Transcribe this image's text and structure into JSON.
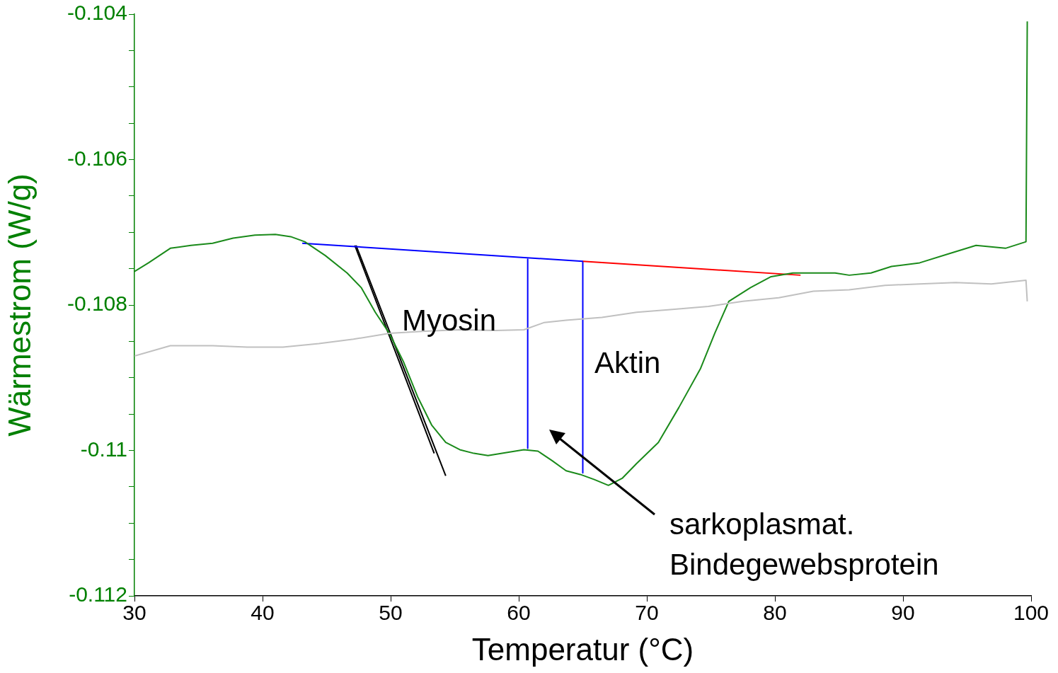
{
  "chart_data": {
    "type": "line",
    "xlabel": "Temperatur (°C)",
    "ylabel": "Wärmestrom (W/g)",
    "xlim": [
      30,
      100
    ],
    "xticks": [
      30,
      40,
      50,
      60,
      70,
      80,
      90,
      100
    ],
    "ylim": [
      -0.112,
      -0.104
    ],
    "yticks": [
      -0.112,
      {
        "value": -0.1115,
        "label": null
      },
      {
        "value": -0.111,
        "label": null
      },
      {
        "value": -0.1105,
        "label": null
      },
      -0.11,
      {
        "value": -0.1095,
        "label": null
      },
      {
        "value": -0.109,
        "label": null
      },
      {
        "value": -0.1085,
        "label": null
      },
      -0.108,
      {
        "value": -0.1075,
        "label": null
      },
      {
        "value": -0.107,
        "label": null
      },
      {
        "value": -0.1065,
        "label": null
      },
      -0.106,
      {
        "value": -0.1055,
        "label": null
      },
      {
        "value": -0.105,
        "label": null
      },
      {
        "value": -0.1045,
        "label": null
      },
      -0.104
    ],
    "grid": false,
    "legend": false,
    "marker": "none",
    "line_style": "solid",
    "series": [
      {
        "color": "#c0c0c0",
        "x": [
          30,
          32.8,
          36.1,
          38.8,
          41.6,
          44.4,
          47.1,
          49.9,
          52.7,
          55.4,
          58.2,
          60.4,
          62.0,
          63.7,
          66.5,
          69.2,
          72.0,
          74.8,
          77.5,
          80.3,
          83.0,
          85.8,
          88.6,
          91.3,
          94.1,
          96.9,
          99.6,
          99.7
        ],
        "values": [
          -0.1087,
          -0.10856,
          -0.10856,
          -0.10858,
          -0.10858,
          -0.10853,
          -0.10847,
          -0.10839,
          -0.10836,
          -0.10834,
          -0.10835,
          -0.10834,
          -0.10824,
          -0.10821,
          -0.10817,
          -0.1081,
          -0.10806,
          -0.10802,
          -0.10795,
          -0.1079,
          -0.10781,
          -0.10779,
          -0.10773,
          -0.10771,
          -0.10769,
          -0.10771,
          -0.10766,
          -0.10795
        ]
      },
      {
        "color": "#1a8a1a",
        "x": [
          30,
          31.1,
          32.8,
          34.4,
          36.1,
          37.7,
          39.4,
          41.0,
          42.2,
          43.3,
          44.9,
          46.6,
          47.7,
          48.8,
          49.9,
          51.0,
          52.1,
          53.2,
          54.3,
          55.4,
          56.5,
          57.6,
          58.7,
          60.4,
          61.5,
          62.6,
          63.7,
          64.8,
          65.9,
          67.0,
          68.1,
          69.2,
          70.9,
          72.5,
          74.2,
          75.3,
          76.4,
          78.1,
          79.7,
          81.4,
          83.0,
          84.7,
          85.8,
          87.5,
          89.1,
          91.3,
          93.5,
          95.7,
          98.0,
          99.6,
          99.7
        ],
        "values": [
          -0.10754,
          -0.10742,
          -0.10722,
          -0.10718,
          -0.10715,
          -0.10708,
          -0.10704,
          -0.10703,
          -0.10706,
          -0.10713,
          -0.10732,
          -0.10756,
          -0.10776,
          -0.1081,
          -0.10839,
          -0.10878,
          -0.10926,
          -0.10965,
          -0.10989,
          -0.10999,
          -0.11004,
          -0.11007,
          -0.11004,
          -0.10999,
          -0.11001,
          -0.11014,
          -0.11028,
          -0.11033,
          -0.1104,
          -0.11048,
          -0.11038,
          -0.11018,
          -0.10989,
          -0.10941,
          -0.10887,
          -0.10839,
          -0.10795,
          -0.10776,
          -0.10761,
          -0.10756,
          -0.10756,
          -0.10756,
          -0.10759,
          -0.10756,
          -0.10747,
          -0.10742,
          -0.1073,
          -0.10718,
          -0.10722,
          -0.10713,
          -0.1041
        ]
      },
      {
        "color": "#0000ff",
        "x": [
          43.1,
          65.0
        ],
        "values": [
          -0.10715,
          -0.1074
        ]
      },
      {
        "color": "#ff0000",
        "x": [
          65.0,
          82.0
        ],
        "values": [
          -0.1074,
          -0.10759
        ]
      },
      {
        "color": "#0000ff",
        "x": [
          60.7,
          60.7
        ],
        "values": [
          -0.10737,
          -0.10997
        ]
      },
      {
        "color": "#0000ff",
        "x": [
          65.0,
          65.0
        ],
        "values": [
          -0.1074,
          -0.11031
        ]
      },
      {
        "color": "#000000",
        "x": [
          47.3,
          54.3
        ],
        "values": [
          -0.10718,
          -0.11035
        ]
      },
      {
        "color": "#000000",
        "x": [
          47.2,
          53.4
        ],
        "values": [
          -0.10718,
          -0.11004
        ]
      }
    ],
    "annotations": [
      "Myosin",
      "Aktin",
      "sarkoplasmat.\nBindegewebsprotein"
    ]
  }
}
